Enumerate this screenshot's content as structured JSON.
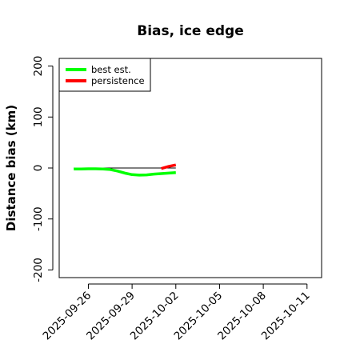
{
  "chart_data": {
    "type": "line",
    "title": "Bias, ice edge",
    "xlabel": "",
    "ylabel": "Distance bias (km)",
    "x_tick_labels": [
      "2025-09-26",
      "2025-09-29",
      "2025-10-02",
      "2025-10-05",
      "2025-10-08",
      "2025-10-11"
    ],
    "y_ticks": [
      -200,
      -100,
      0,
      100,
      200
    ],
    "xlim": [
      "2025-09-24",
      "2025-10-12"
    ],
    "ylim": [
      -215,
      215
    ],
    "zero_line": true,
    "grid": false,
    "legend_position": "top-left",
    "series": [
      {
        "name": "best est.",
        "color": "#00ff00",
        "x": [
          "2025-09-25",
          "2025-09-25T12:00",
          "2025-09-26",
          "2025-09-26T12:00",
          "2025-09-27",
          "2025-09-27T12:00",
          "2025-09-28",
          "2025-09-28T12:00",
          "2025-09-29",
          "2025-09-29T12:00",
          "2025-09-30",
          "2025-09-30T12:00",
          "2025-10-01",
          "2025-10-01T12:00",
          "2025-10-02"
        ],
        "values": [
          -2,
          -2,
          -1.5,
          -1.5,
          -2,
          -3,
          -6,
          -10,
          -13,
          -14,
          -13.5,
          -12,
          -11,
          -10,
          -9
        ]
      },
      {
        "name": "persistence",
        "color": "#ff0000",
        "x": [
          "2025-10-01",
          "2025-10-01T12:00",
          "2025-10-02"
        ],
        "values": [
          -1,
          3,
          6
        ]
      }
    ]
  }
}
